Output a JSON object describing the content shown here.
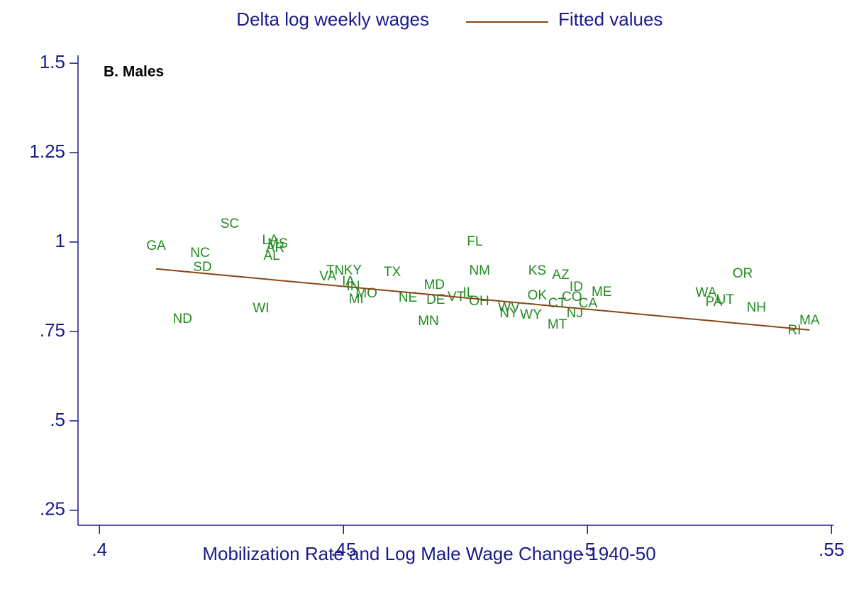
{
  "chart_data": {
    "type": "scatter",
    "annotation": "B. Males",
    "xlabel": "Mobilization Rate and Log Male Wage Change 1940-50",
    "xlim": [
      0.3956,
      0.5504
    ],
    "ylim": [
      0.208,
      1.522
    ],
    "xticks": [
      {
        "value": 0.4,
        "label": ".4"
      },
      {
        "value": 0.45,
        "label": ".45"
      },
      {
        "value": 0.5,
        "label": ".5"
      },
      {
        "value": 0.55,
        "label": ".55"
      }
    ],
    "yticks": [
      {
        "value": 0.25,
        "label": ".25"
      },
      {
        "value": 0.5,
        "label": ".5"
      },
      {
        "value": 0.75,
        "label": ".75"
      },
      1,
      1.25,
      1.5
    ],
    "series": [
      {
        "name": "Delta log weekly wages",
        "color": "#228b22",
        "labels": [
          "GA",
          "NC",
          "SD",
          "ND",
          "SC",
          "LA",
          "MS",
          "AR",
          "AL",
          "WI",
          "VA",
          "TN",
          "KY",
          "IA",
          "IN",
          "MO",
          "MI",
          "TX",
          "NE",
          "MD",
          "DE",
          "MN",
          "VT",
          "IL",
          "FL",
          "NM",
          "OH",
          "NY",
          "WV",
          "WY",
          "KS",
          "AZ",
          "OK",
          "ID",
          "CT",
          "CO",
          "MT",
          "NJ",
          "CA",
          "ME",
          "WA",
          "PA",
          "UT",
          "NH",
          "OR",
          "RI",
          "MA"
        ],
        "x": [
          0.4116,
          0.4206,
          0.4211,
          0.417,
          0.4267,
          0.435,
          0.4365,
          0.436,
          0.4353,
          0.4331,
          0.4468,
          0.4483,
          0.4519,
          0.451,
          0.452,
          0.4547,
          0.4526,
          0.46,
          0.4632,
          0.4686,
          0.4689,
          0.4674,
          0.4731,
          0.4756,
          0.4769,
          0.4779,
          0.4778,
          0.4839,
          0.4839,
          0.4884,
          0.4897,
          0.4945,
          0.4897,
          0.4977,
          0.4938,
          0.4968,
          0.4938,
          0.4974,
          0.5001,
          0.5029,
          0.5243,
          0.5259,
          0.5282,
          0.5346,
          0.5318,
          0.5424,
          0.5455
        ],
        "values": [
          0.988,
          0.968,
          0.929,
          0.784,
          1.05,
          1.004,
          0.994,
          0.982,
          0.96,
          0.813,
          0.903,
          0.919,
          0.92,
          0.889,
          0.875,
          0.855,
          0.839,
          0.915,
          0.843,
          0.879,
          0.837,
          0.778,
          0.845,
          0.857,
          1.0,
          0.919,
          0.833,
          0.8,
          0.815,
          0.796,
          0.919,
          0.907,
          0.849,
          0.873,
          0.827,
          0.845,
          0.768,
          0.8,
          0.827,
          0.859,
          0.857,
          0.831,
          0.837,
          0.815,
          0.911,
          0.752,
          0.78
        ]
      },
      {
        "name": "Fitted values",
        "color": "#8b4513",
        "type": "line",
        "x": [
          0.4116,
          0.5455
        ],
        "values": [
          0.925,
          0.754
        ]
      }
    ]
  }
}
